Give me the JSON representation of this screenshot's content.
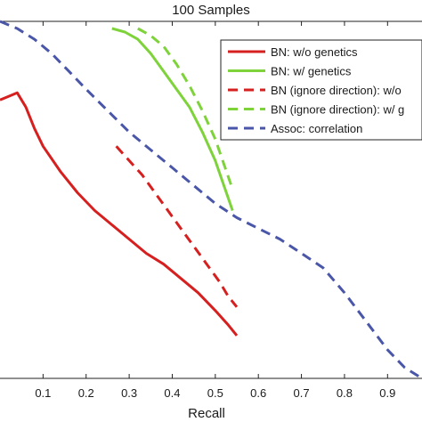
{
  "chart_data": {
    "type": "line",
    "title": "100 Samples",
    "xlabel": "Recall",
    "ylabel": "",
    "xlim": [
      0.0,
      0.98
    ],
    "ylim": [
      0.0,
      1.0
    ],
    "xticks": [
      "0.1",
      "0.2",
      "0.3",
      "0.4",
      "0.5",
      "0.6",
      "0.7",
      "0.8",
      "0.9"
    ],
    "xtick_values": [
      0.1,
      0.2,
      0.3,
      0.4,
      0.5,
      0.6,
      0.7,
      0.8,
      0.9
    ],
    "grid": false,
    "legend_position": "top-right",
    "series": [
      {
        "name": "BN: w/o genetics",
        "color": "#d62020",
        "dash": "solid",
        "x": [
          0.0,
          0.02,
          0.04,
          0.06,
          0.08,
          0.1,
          0.14,
          0.18,
          0.22,
          0.26,
          0.3,
          0.34,
          0.38,
          0.42,
          0.46,
          0.5,
          0.53,
          0.55
        ],
        "y": [
          0.78,
          0.79,
          0.8,
          0.76,
          0.7,
          0.65,
          0.58,
          0.52,
          0.47,
          0.43,
          0.39,
          0.35,
          0.32,
          0.28,
          0.24,
          0.19,
          0.15,
          0.12
        ]
      },
      {
        "name": "BN: w/ genetics",
        "color": "#7ed23a",
        "dash": "solid",
        "x": [
          0.26,
          0.29,
          0.32,
          0.35,
          0.38,
          0.41,
          0.44,
          0.47,
          0.5,
          0.52,
          0.54
        ],
        "y": [
          0.98,
          0.97,
          0.95,
          0.91,
          0.86,
          0.81,
          0.76,
          0.69,
          0.61,
          0.54,
          0.47
        ]
      },
      {
        "name": "BN (ignore direction): w/o",
        "color": "#d62020",
        "dash": "dashed",
        "x": [
          0.27,
          0.3,
          0.33,
          0.36,
          0.39,
          0.42,
          0.45,
          0.48,
          0.51,
          0.53,
          0.55
        ],
        "y": [
          0.65,
          0.61,
          0.57,
          0.52,
          0.47,
          0.42,
          0.37,
          0.32,
          0.27,
          0.23,
          0.2
        ]
      },
      {
        "name": "BN (ignore direction): w/ g",
        "color": "#7ed23a",
        "dash": "dashed",
        "x": [
          0.32,
          0.35,
          0.38,
          0.41,
          0.44,
          0.47,
          0.5,
          0.52,
          0.54
        ],
        "y": [
          0.98,
          0.96,
          0.93,
          0.88,
          0.82,
          0.75,
          0.67,
          0.6,
          0.53
        ]
      },
      {
        "name": "Assoc: correlation",
        "color": "#4a56a8",
        "dash": "dashed",
        "x": [
          0.0,
          0.04,
          0.08,
          0.12,
          0.16,
          0.2,
          0.25,
          0.3,
          0.35,
          0.4,
          0.45,
          0.5,
          0.55,
          0.6,
          0.65,
          0.7,
          0.75,
          0.8,
          0.85,
          0.9,
          0.94,
          0.98
        ],
        "y": [
          1.0,
          0.98,
          0.95,
          0.91,
          0.86,
          0.81,
          0.75,
          0.69,
          0.64,
          0.59,
          0.54,
          0.49,
          0.45,
          0.42,
          0.39,
          0.35,
          0.31,
          0.24,
          0.16,
          0.08,
          0.03,
          0.0
        ]
      }
    ]
  }
}
